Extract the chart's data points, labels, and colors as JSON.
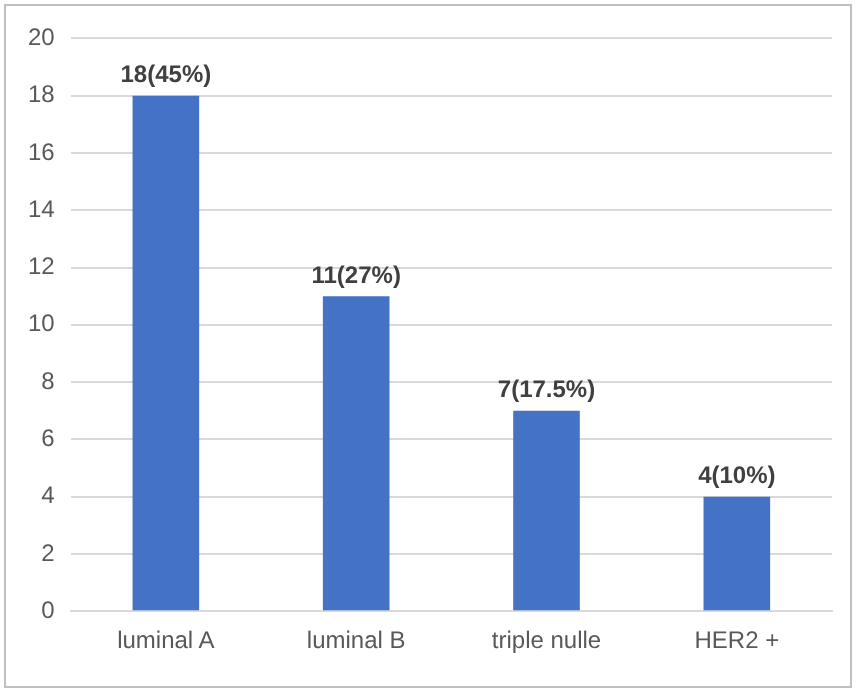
{
  "chart_data": {
    "type": "bar",
    "categories": [
      "luminal A",
      "luminal B",
      "triple nulle",
      "HER2 +"
    ],
    "values": [
      18,
      11,
      7,
      4
    ],
    "value_labels": [
      "18(45%)",
      "11(27%)",
      "7(17.5%)",
      "4(10%)"
    ],
    "color": "#4472c4",
    "ylim": [
      0,
      20
    ],
    "yticks": [
      0,
      2,
      4,
      6,
      8,
      10,
      12,
      14,
      16,
      18,
      20
    ],
    "grid": "y",
    "legend": false
  }
}
